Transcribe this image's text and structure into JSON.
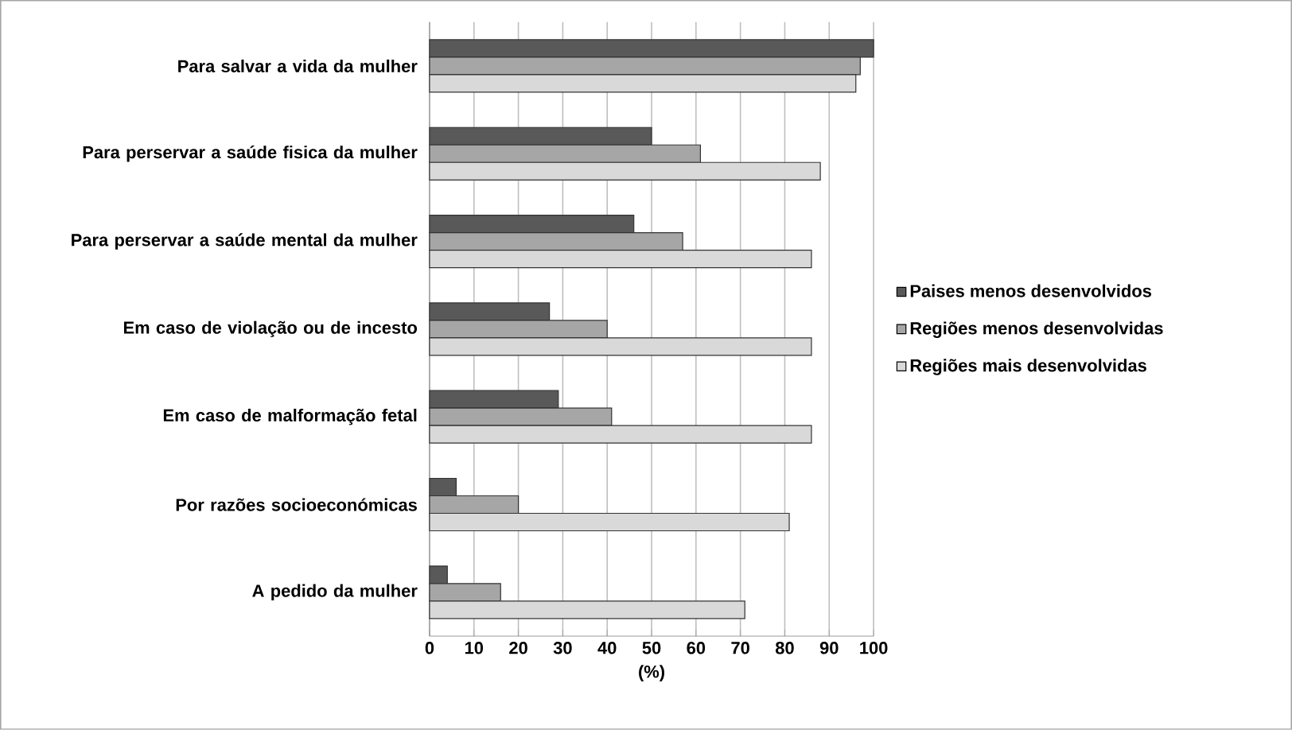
{
  "chart_data": {
    "type": "bar",
    "orientation": "horizontal",
    "xlabel": "(%)",
    "categories": [
      "Para salvar a vida da mulher",
      "Para perservar a saúde fisica da mulher",
      "Para perservar a saúde mental da mulher",
      "Em caso de violação ou de incesto",
      "Em caso de malformação fetal",
      "Por razões socioeconómicas",
      "A pedido da mulher"
    ],
    "series": [
      {
        "name": "Paises menos desenvolvidos",
        "color": "#595959",
        "values": [
          100,
          50,
          46,
          27,
          29,
          6,
          4
        ]
      },
      {
        "name": "Regiões menos desenvolvidas",
        "color": "#a6a6a6",
        "values": [
          97,
          61,
          57,
          40,
          41,
          20,
          16
        ]
      },
      {
        "name": "Regiões mais desenvolvidas",
        "color": "#d9d9d9",
        "values": [
          96,
          88,
          86,
          86,
          86,
          81,
          71
        ]
      }
    ],
    "xlim": [
      0,
      100
    ],
    "xticks": [
      0,
      10,
      20,
      30,
      40,
      50,
      60,
      70,
      80,
      90,
      100
    ],
    "grid": "x",
    "legend": "right"
  }
}
